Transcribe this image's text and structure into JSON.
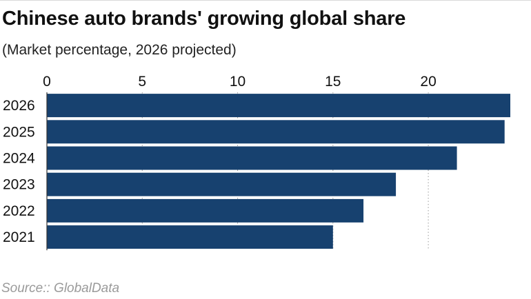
{
  "chart_data": {
    "type": "bar",
    "orientation": "horizontal",
    "title": "Chinese auto brands' growing global share",
    "subtitle": "(Market percentage, 2026 projected)",
    "source": "Source:: GlobalData",
    "categories": [
      "2026",
      "2025",
      "2024",
      "2023",
      "2022",
      "2021"
    ],
    "values": [
      24.3,
      24.0,
      21.5,
      18.3,
      16.6,
      15.0
    ],
    "xlim": [
      0,
      24.3
    ],
    "xticks": [
      0,
      5,
      10,
      15,
      20
    ],
    "xticks_position": "top",
    "grid": "vertical dotted",
    "bar_color": "#17416f"
  }
}
